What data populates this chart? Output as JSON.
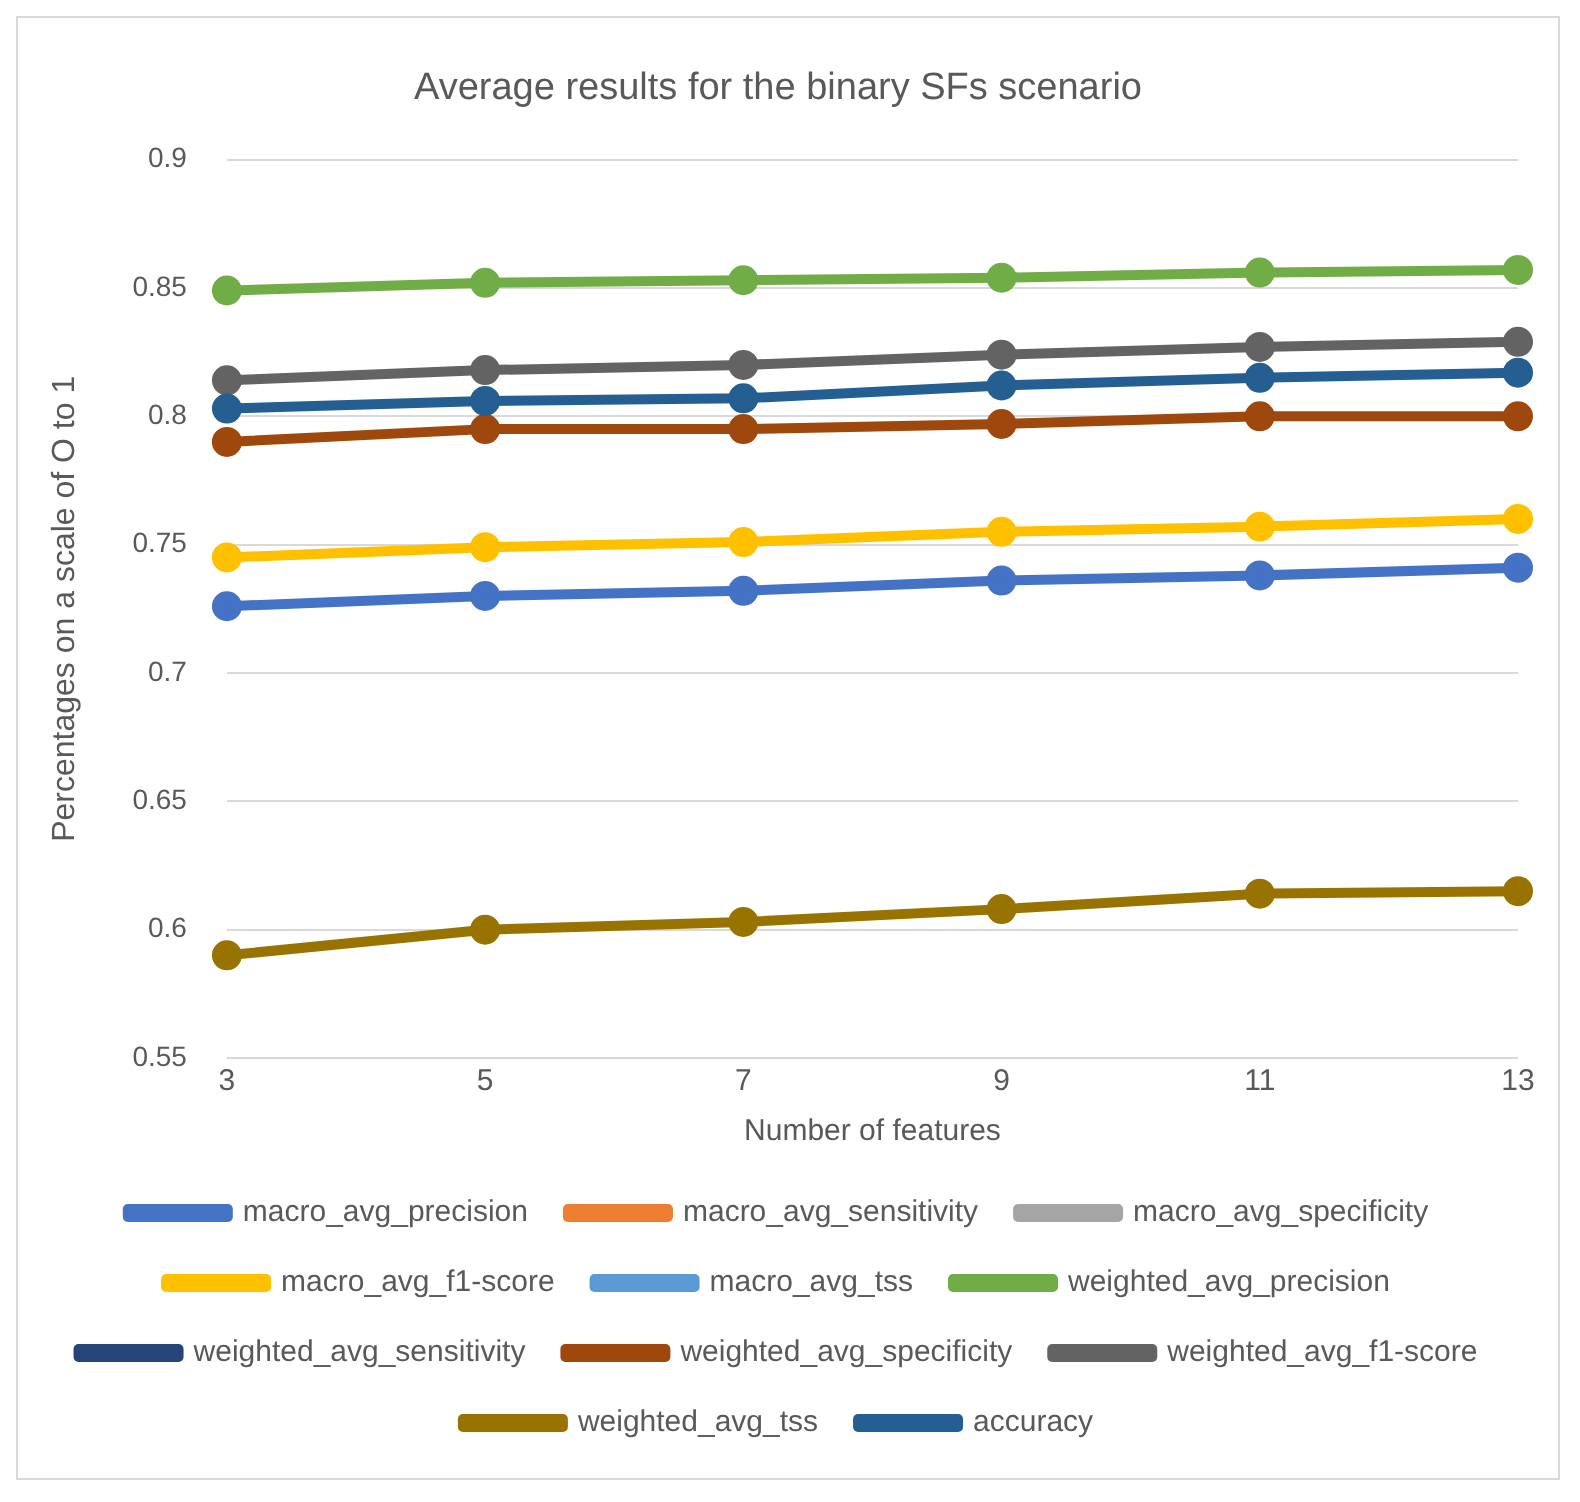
{
  "chart_data": {
    "type": "line",
    "title": "Average results for the binary SFs scenario",
    "xlabel": "Number of features",
    "ylabel": "Percentages on a scale of O to 1",
    "categories": [
      "3",
      "5",
      "7",
      "9",
      "11",
      "13"
    ],
    "ylim": [
      0.55,
      0.9
    ],
    "yticks": [
      0.55,
      0.6,
      0.65,
      0.7,
      0.75,
      0.8,
      0.85,
      0.9
    ],
    "grid": "y",
    "legend": "bottom",
    "marker": "circle",
    "series": [
      {
        "name": "macro_avg_precision",
        "color": "#4472c4",
        "values": [
          0.726,
          0.73,
          0.732,
          0.736,
          0.738,
          0.741
        ]
      },
      {
        "name": "macro_avg_sensitivity",
        "color": "#ed7d31",
        "values": [
          null,
          null,
          null,
          null,
          null,
          null
        ]
      },
      {
        "name": "macro_avg_specificity",
        "color": "#a5a5a5",
        "values": [
          null,
          null,
          null,
          null,
          null,
          null
        ]
      },
      {
        "name": "macro_avg_f1-score",
        "color": "#ffc000",
        "values": [
          0.745,
          0.749,
          0.751,
          0.755,
          0.757,
          0.76
        ]
      },
      {
        "name": "macro_avg_tss",
        "color": "#5b9bd5",
        "values": [
          null,
          null,
          null,
          null,
          null,
          null
        ]
      },
      {
        "name": "weighted_avg_precision",
        "color": "#70ad47",
        "values": [
          0.849,
          0.852,
          0.853,
          0.854,
          0.856,
          0.857
        ]
      },
      {
        "name": "weighted_avg_sensitivity",
        "color": "#264478",
        "values": [
          null,
          null,
          null,
          null,
          null,
          null
        ]
      },
      {
        "name": "weighted_avg_specificity",
        "color": "#9e480e",
        "values": [
          0.79,
          0.795,
          0.795,
          0.797,
          0.8,
          0.8
        ]
      },
      {
        "name": "weighted_avg_f1-score",
        "color": "#636363",
        "values": [
          0.814,
          0.818,
          0.82,
          0.824,
          0.827,
          0.829
        ]
      },
      {
        "name": "weighted_avg_tss",
        "color": "#997300",
        "values": [
          0.59,
          0.6,
          0.603,
          0.608,
          0.614,
          0.615
        ]
      },
      {
        "name": "accuracy",
        "color": "#255e91",
        "values": [
          0.803,
          0.806,
          0.807,
          0.812,
          0.815,
          0.817
        ]
      }
    ]
  }
}
